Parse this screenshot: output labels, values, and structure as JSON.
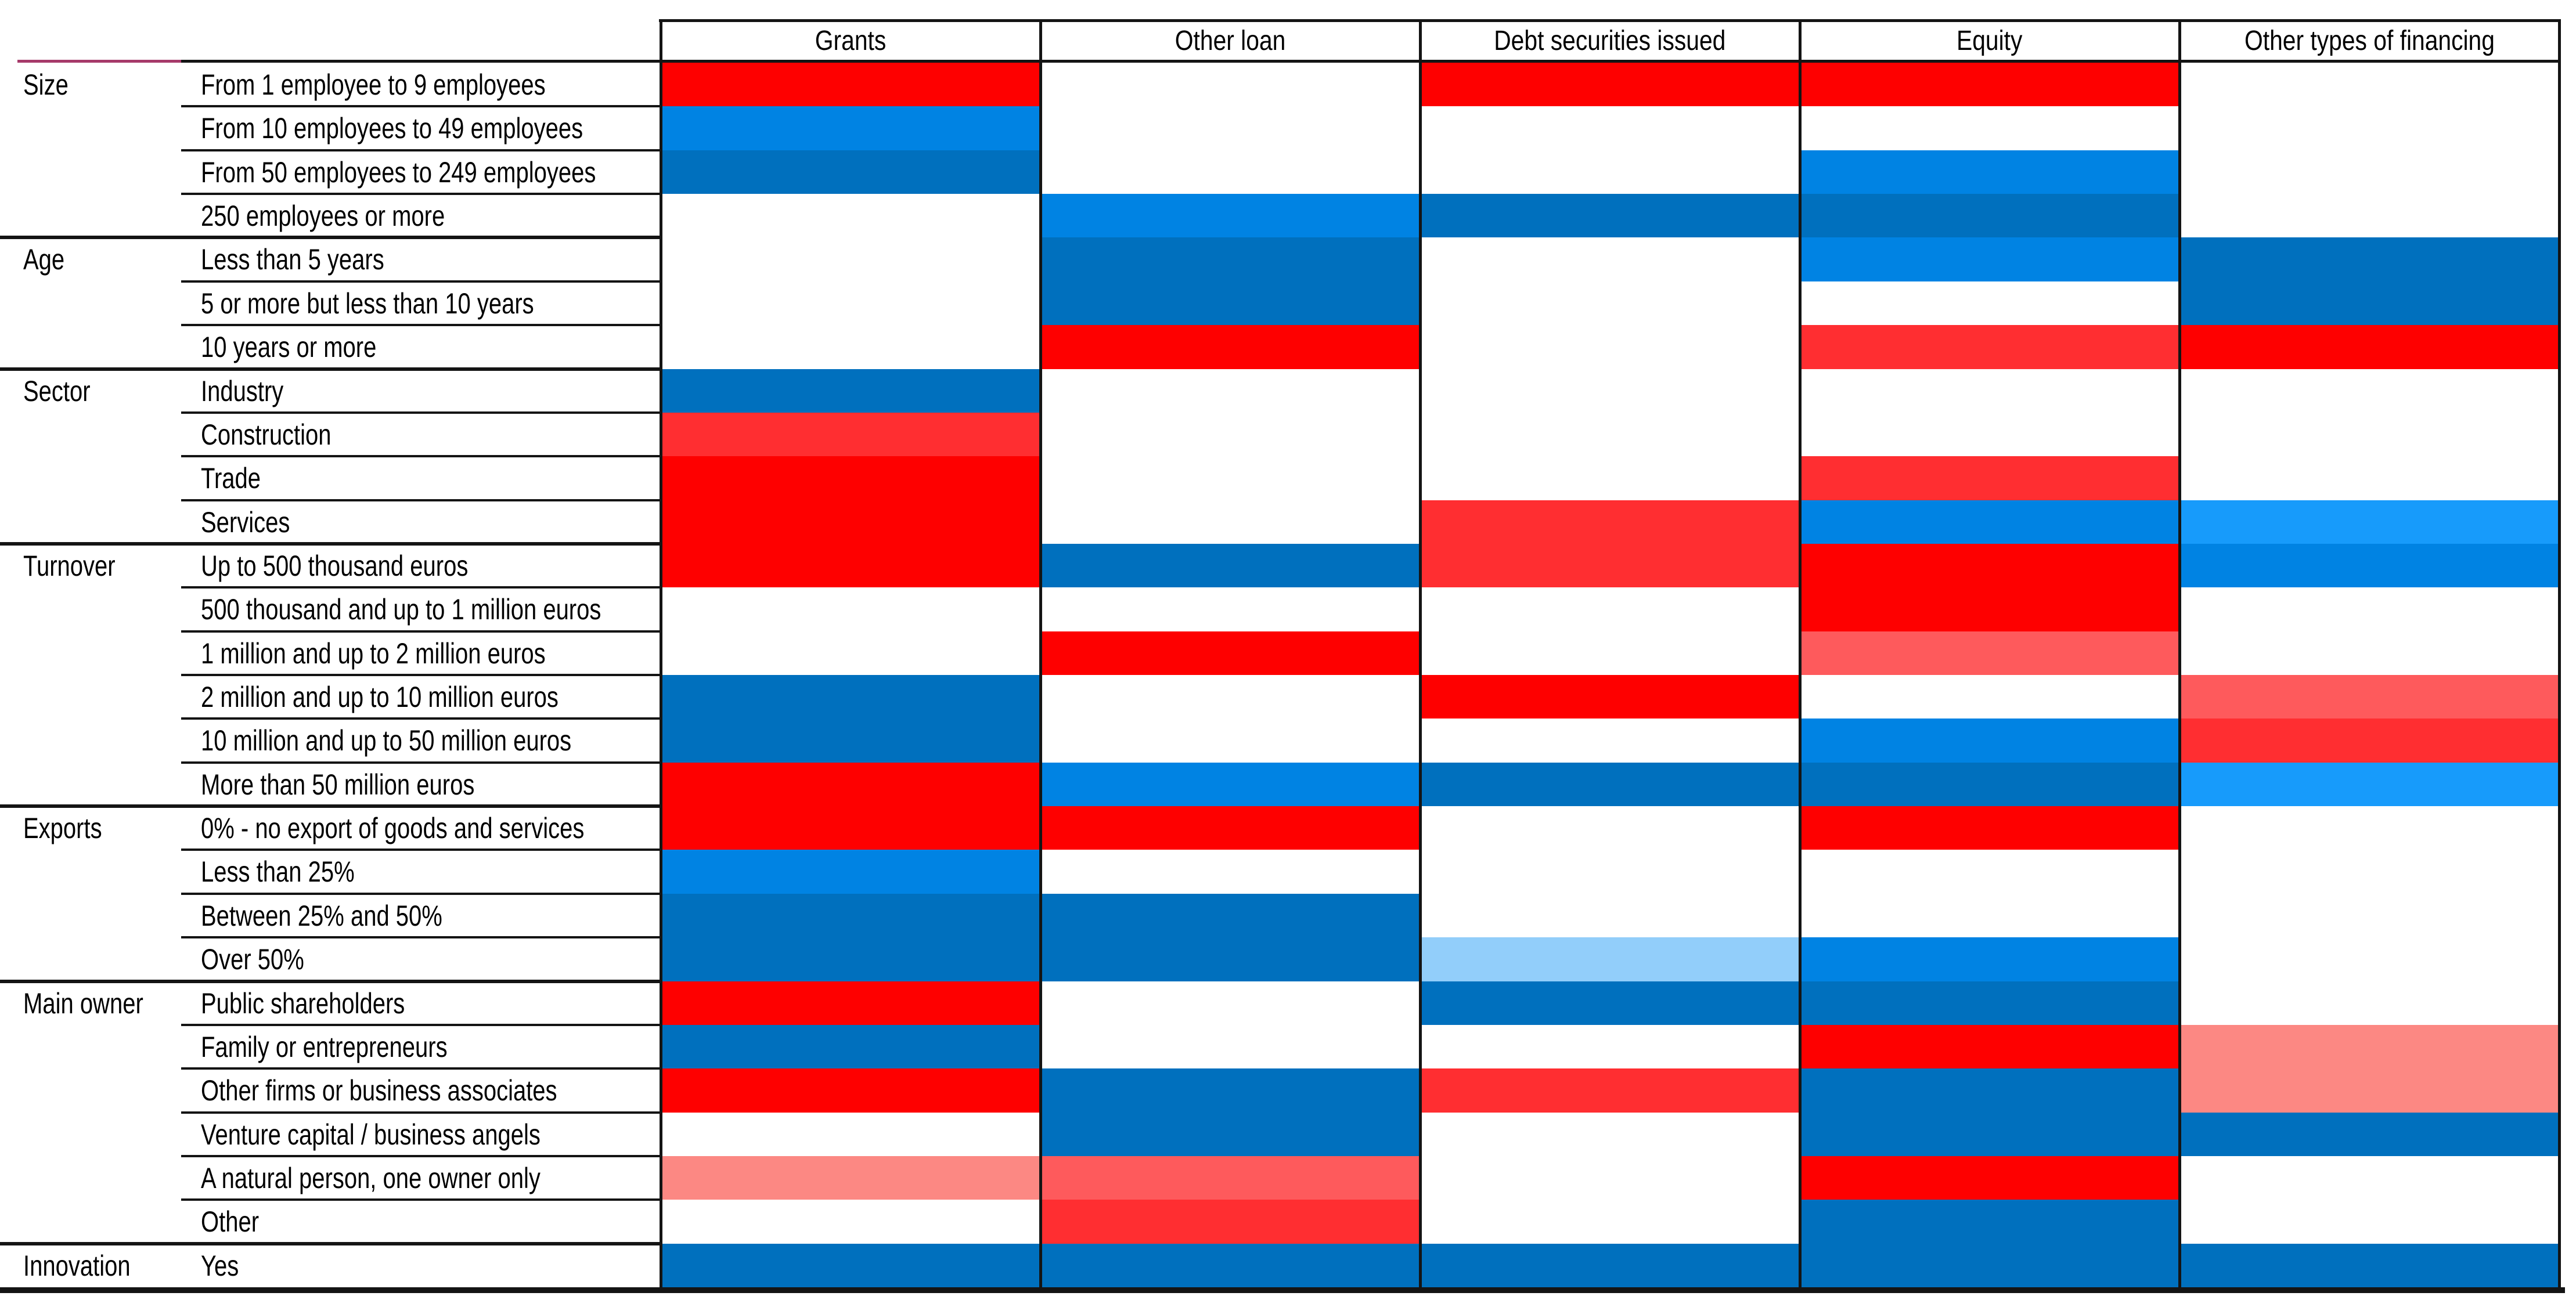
{
  "chart_data": {
    "type": "heatmap",
    "title": "",
    "legend_visible": false,
    "columns": [
      "Grants",
      "Other loan",
      "Debt securities issued",
      "Equity",
      "Other types of financing"
    ],
    "palette": {
      "R0": "#fe0000",
      "R1": "#ff2e31",
      "R2": "#fe5a5c",
      "R3": "#fc8883",
      "B0": "#0070be",
      "B1": "#0083e3",
      "B2": "#179bfb",
      "B3": "#92cefa",
      "W": "#ffffff"
    },
    "accent_line_color": "#a63a6a",
    "row_groups": [
      {
        "label": "Size",
        "rows": [
          {
            "label": "From 1 employee to 9 employees",
            "cells": [
              "R0",
              "W",
              "R0",
              "R0",
              "W"
            ]
          },
          {
            "label": "From 10 employees to 49 employees",
            "cells": [
              "B1",
              "W",
              "W",
              "W",
              "W"
            ]
          },
          {
            "label": "From 50 employees to 249 employees",
            "cells": [
              "B0",
              "W",
              "W",
              "B1",
              "W"
            ]
          },
          {
            "label": "250 employees or more",
            "cells": [
              "W",
              "B1",
              "B0",
              "B0",
              "W"
            ]
          }
        ]
      },
      {
        "label": "Age",
        "rows": [
          {
            "label": "Less than 5 years",
            "cells": [
              "W",
              "B0",
              "W",
              "B1",
              "B0"
            ]
          },
          {
            "label": "5 or more but less than 10 years",
            "cells": [
              "W",
              "B0",
              "W",
              "W",
              "B0"
            ]
          },
          {
            "label": "10 years or more",
            "cells": [
              "W",
              "R0",
              "W",
              "R1",
              "R0"
            ]
          }
        ]
      },
      {
        "label": "Sector",
        "rows": [
          {
            "label": "Industry",
            "cells": [
              "B0",
              "W",
              "W",
              "W",
              "W"
            ]
          },
          {
            "label": "Construction",
            "cells": [
              "R1",
              "W",
              "W",
              "W",
              "W"
            ]
          },
          {
            "label": "Trade",
            "cells": [
              "R0",
              "W",
              "W",
              "R1",
              "W"
            ]
          },
          {
            "label": "Services",
            "cells": [
              "R0",
              "W",
              "R1",
              "B1",
              "B2"
            ]
          }
        ]
      },
      {
        "label": "Turnover",
        "rows": [
          {
            "label": "Up to 500 thousand euros",
            "cells": [
              "R0",
              "B0",
              "R1",
              "R0",
              "B1"
            ]
          },
          {
            "label": "500 thousand and up to 1 million euros",
            "cells": [
              "W",
              "W",
              "W",
              "R0",
              "W"
            ]
          },
          {
            "label": "1 million and up to 2 million euros",
            "cells": [
              "W",
              "R0",
              "W",
              "R2",
              "W"
            ]
          },
          {
            "label": "2 million and up to 10 million euros",
            "cells": [
              "B0",
              "W",
              "R0",
              "W",
              "R2"
            ]
          },
          {
            "label": "10 million and up to 50 million euros",
            "cells": [
              "B0",
              "W",
              "W",
              "B1",
              "R1"
            ]
          },
          {
            "label": "More than 50 million euros",
            "cells": [
              "R0",
              "B1",
              "B0",
              "B0",
              "B2"
            ]
          }
        ]
      },
      {
        "label": "Exports",
        "rows": [
          {
            "label": "0% - no export of goods and services",
            "cells": [
              "R0",
              "R0",
              "W",
              "R0",
              "W"
            ]
          },
          {
            "label": "Less than 25%",
            "cells": [
              "B1",
              "W",
              "W",
              "W",
              "W"
            ]
          },
          {
            "label": "Between 25% and 50%",
            "cells": [
              "B0",
              "B0",
              "W",
              "W",
              "W"
            ]
          },
          {
            "label": "Over 50%",
            "cells": [
              "B0",
              "B0",
              "B3",
              "B1",
              "W"
            ]
          }
        ]
      },
      {
        "label": "Main owner",
        "rows": [
          {
            "label": "Public shareholders",
            "cells": [
              "R0",
              "W",
              "B0",
              "B0",
              "W"
            ]
          },
          {
            "label": "Family or entrepreneurs",
            "cells": [
              "B0",
              "W",
              "W",
              "R0",
              "R3"
            ]
          },
          {
            "label": "Other firms or business associates",
            "cells": [
              "R0",
              "B0",
              "R1",
              "B0",
              "R3"
            ]
          },
          {
            "label": "Venture capital / business angels",
            "cells": [
              "W",
              "B0",
              "W",
              "B0",
              "B0"
            ]
          },
          {
            "label": "A natural person, one owner only",
            "cells": [
              "R3",
              "R2",
              "W",
              "R0",
              "W"
            ]
          },
          {
            "label": "Other",
            "cells": [
              "W",
              "R1",
              "W",
              "B0",
              "W"
            ]
          }
        ]
      },
      {
        "label": "Innovation",
        "rows": [
          {
            "label": "Yes",
            "cells": [
              "B0",
              "B0",
              "B0",
              "B0",
              "B0"
            ]
          }
        ]
      }
    ]
  }
}
